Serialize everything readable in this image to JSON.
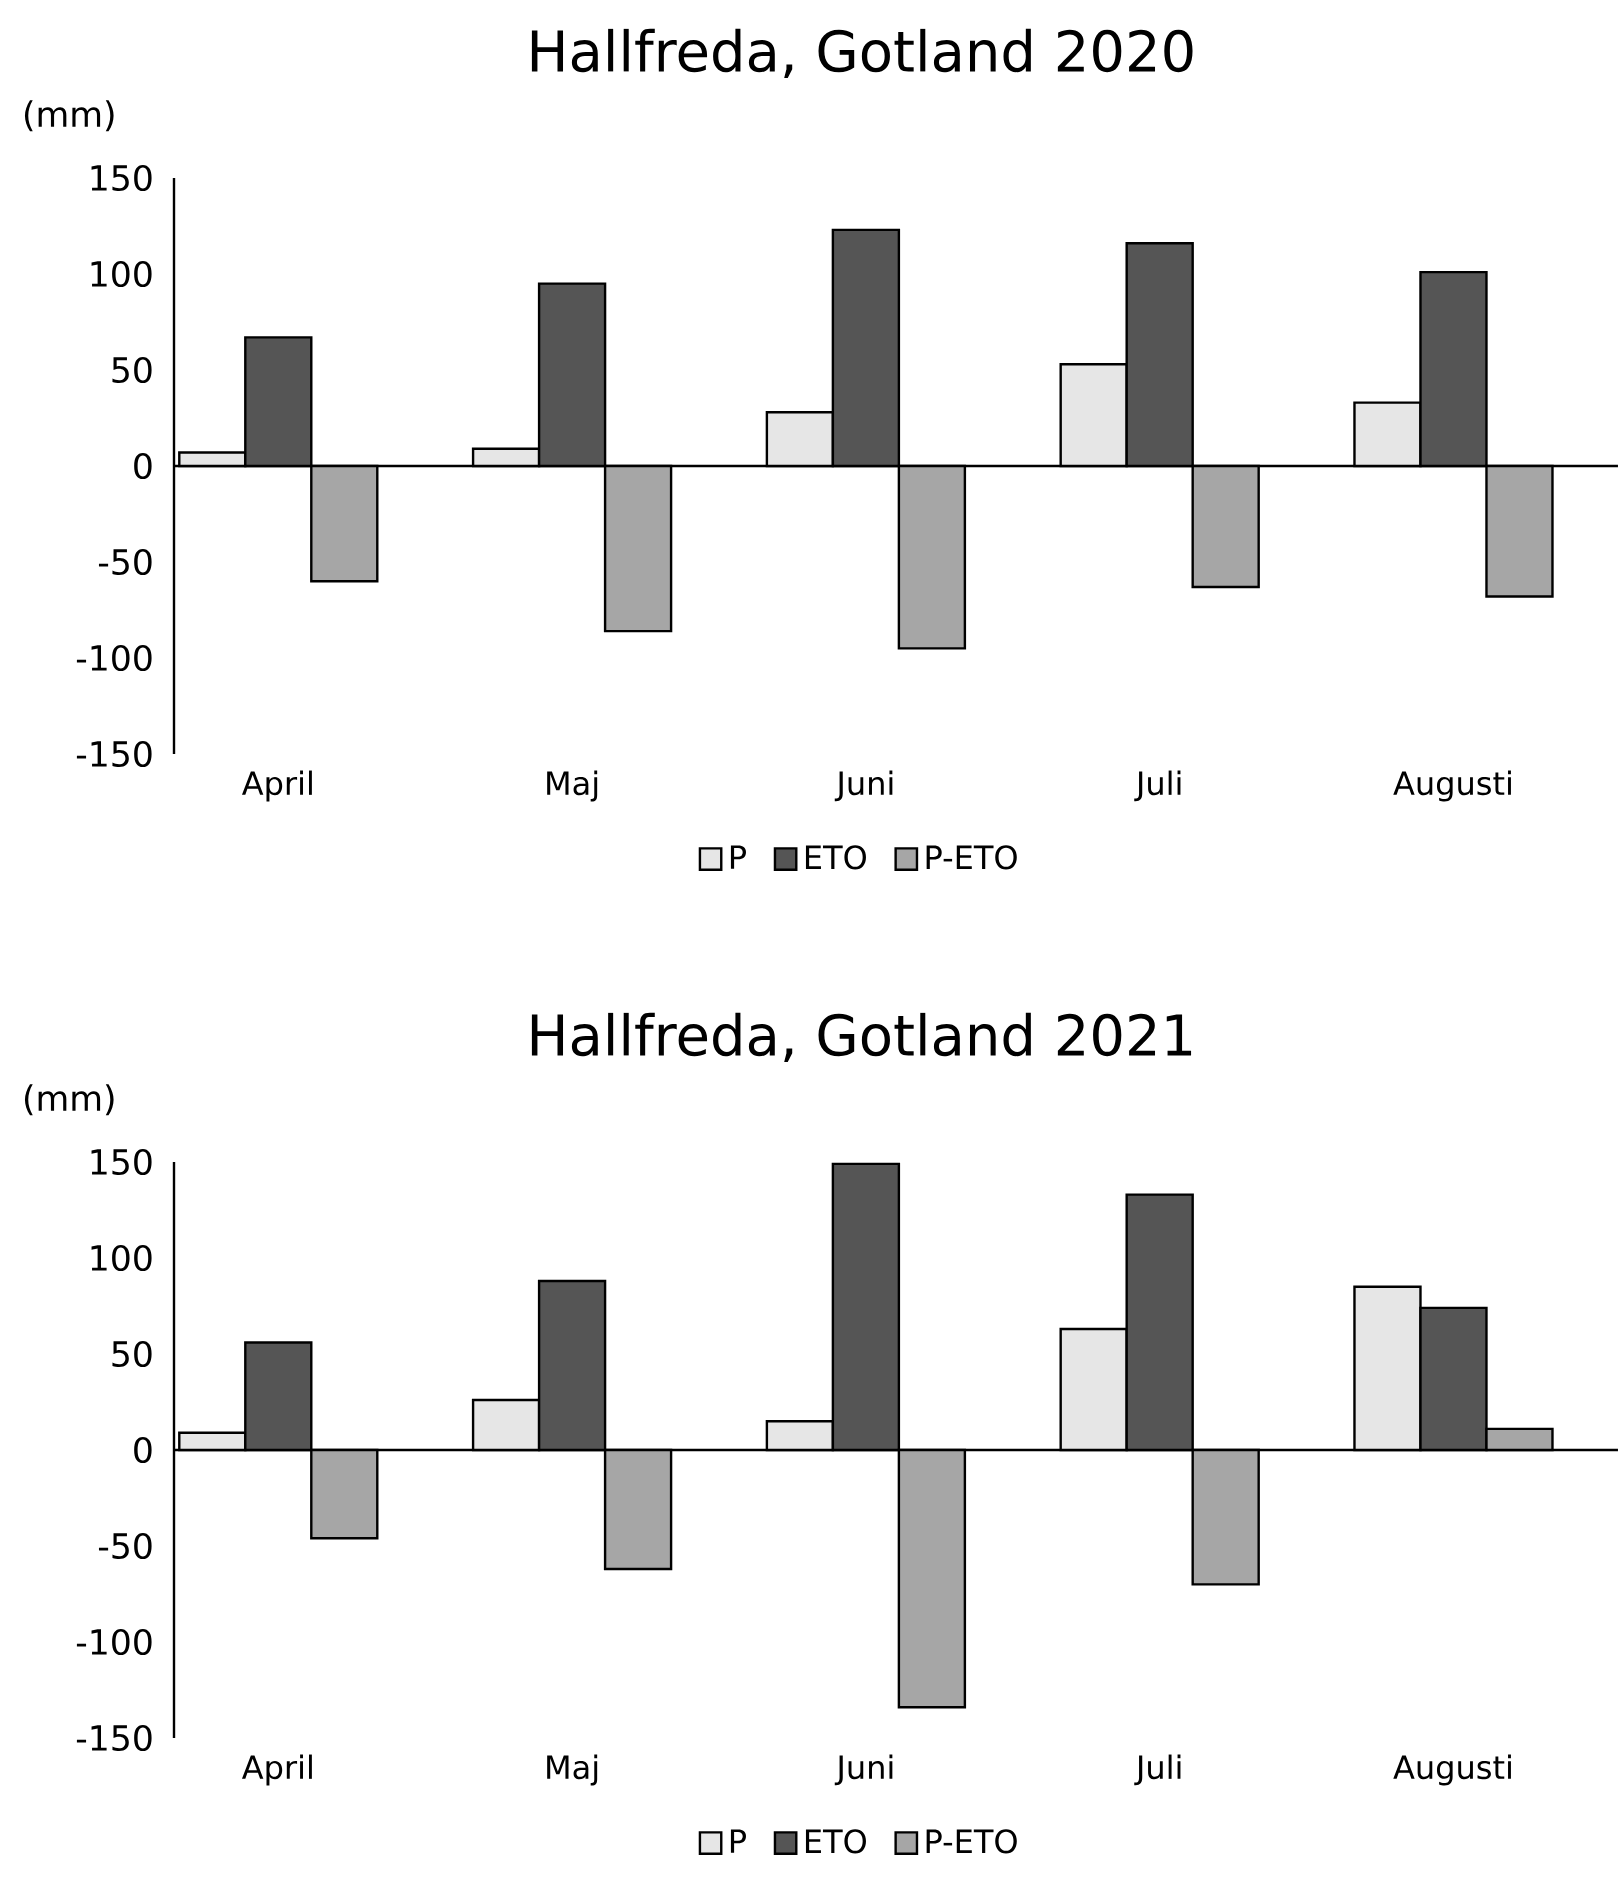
{
  "chart_data": [
    {
      "type": "bar",
      "title": "Hallfreda, Gotland 2020",
      "ylabel": "(mm)",
      "categories": [
        "April",
        "Maj",
        "Juni",
        "Juli",
        "Augusti"
      ],
      "series": [
        {
          "name": "P",
          "color": "#e6e6e6",
          "values": [
            7,
            9,
            28,
            53,
            33
          ]
        },
        {
          "name": "ETO",
          "color": "#555555",
          "values": [
            67,
            95,
            123,
            116,
            101
          ]
        },
        {
          "name": "P-ETO",
          "color": "#a6a6a6",
          "values": [
            -60,
            -86,
            -95,
            -63,
            -68
          ]
        }
      ],
      "ylim": [
        -150,
        150
      ],
      "yticks": [
        -150,
        -100,
        -50,
        0,
        50,
        100,
        150
      ],
      "legend": "bottom"
    },
    {
      "type": "bar",
      "title": "Hallfreda, Gotland 2021",
      "ylabel": "(mm)",
      "categories": [
        "April",
        "Maj",
        "Juni",
        "Juli",
        "Augusti"
      ],
      "series": [
        {
          "name": "P",
          "color": "#e6e6e6",
          "values": [
            9,
            26,
            15,
            63,
            85
          ]
        },
        {
          "name": "ETO",
          "color": "#555555",
          "values": [
            56,
            88,
            149,
            133,
            74
          ]
        },
        {
          "name": "P-ETO",
          "color": "#a6a6a6",
          "values": [
            -46,
            -62,
            -134,
            -70,
            11
          ]
        }
      ],
      "ylim": [
        -150,
        150
      ],
      "yticks": [
        -150,
        -100,
        -50,
        0,
        50,
        100,
        150
      ],
      "legend": "bottom"
    }
  ]
}
